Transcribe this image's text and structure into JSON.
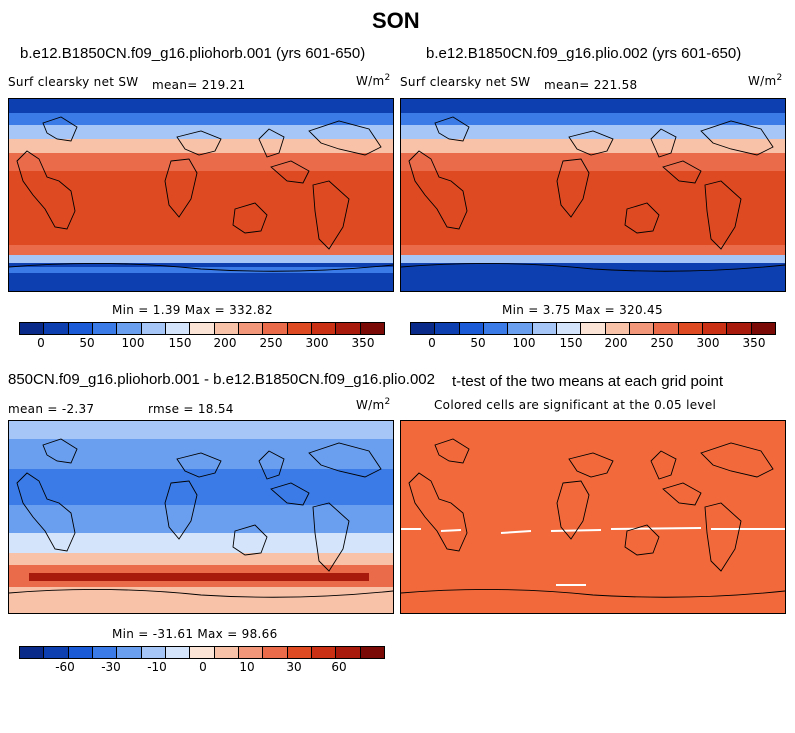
{
  "title": "SON",
  "colors": {
    "mean_scale": [
      "#0a2a8a",
      "#0d3fb0",
      "#1a5ad6",
      "#3a7be8",
      "#6a9ff0",
      "#a5c6f7",
      "#d4e4fa",
      "#fbe3d6",
      "#f8c2a9",
      "#f3977a",
      "#e96b4a",
      "#de4a22",
      "#c93014",
      "#a81a0c",
      "#7a0a06"
    ],
    "diff_scale": [
      "#0a2a8a",
      "#0d3fb0",
      "#1a5ad6",
      "#3a7be8",
      "#6a9ff0",
      "#a5c6f7",
      "#d4e4fa",
      "#fbe3d6",
      "#f8c2a9",
      "#f3977a",
      "#e96b4a",
      "#de4a22",
      "#c93014",
      "#a81a0c",
      "#7a0a06"
    ],
    "ttest_fill": "#f26a3b"
  },
  "panels": {
    "p1": {
      "case_title": "b.e12.B1850CN.f09_g16.pliohorb.001 (yrs 601-650)",
      "var_label": "Surf clearsky net SW",
      "mean_label": "mean= 219.21",
      "units_base": "W/m",
      "units_exp": "2",
      "minmax": "Min =    1.39 Max = 332.82",
      "ticks": [
        "0",
        "50",
        "100",
        "150",
        "200",
        "250",
        "300",
        "350"
      ]
    },
    "p2": {
      "case_title": "b.e12.B1850CN.f09_g16.plio.002 (yrs 601-650)",
      "var_label": "Surf clearsky net SW",
      "mean_label": "mean= 221.58",
      "units_base": "W/m",
      "units_exp": "2",
      "minmax": "Min =    3.75 Max = 320.45",
      "ticks": [
        "0",
        "50",
        "100",
        "150",
        "200",
        "250",
        "300",
        "350"
      ]
    },
    "p3": {
      "case_title": "850CN.f09_g16.pliohorb.001 - b.e12.B1850CN.f09_g16.plio.002",
      "mean_label": "mean =  -2.37",
      "rmse_label": "rmse =  18.54",
      "units_base": "W/m",
      "units_exp": "2",
      "minmax": "Min = -31.61 Max =  98.66",
      "ticks": [
        "-60",
        "-30",
        "-10",
        "0",
        "10",
        "30",
        "60"
      ]
    },
    "p4": {
      "case_title": "t-test of the two means at each grid point",
      "subtitle": "Colored cells are significant at the 0.05 level"
    }
  }
}
